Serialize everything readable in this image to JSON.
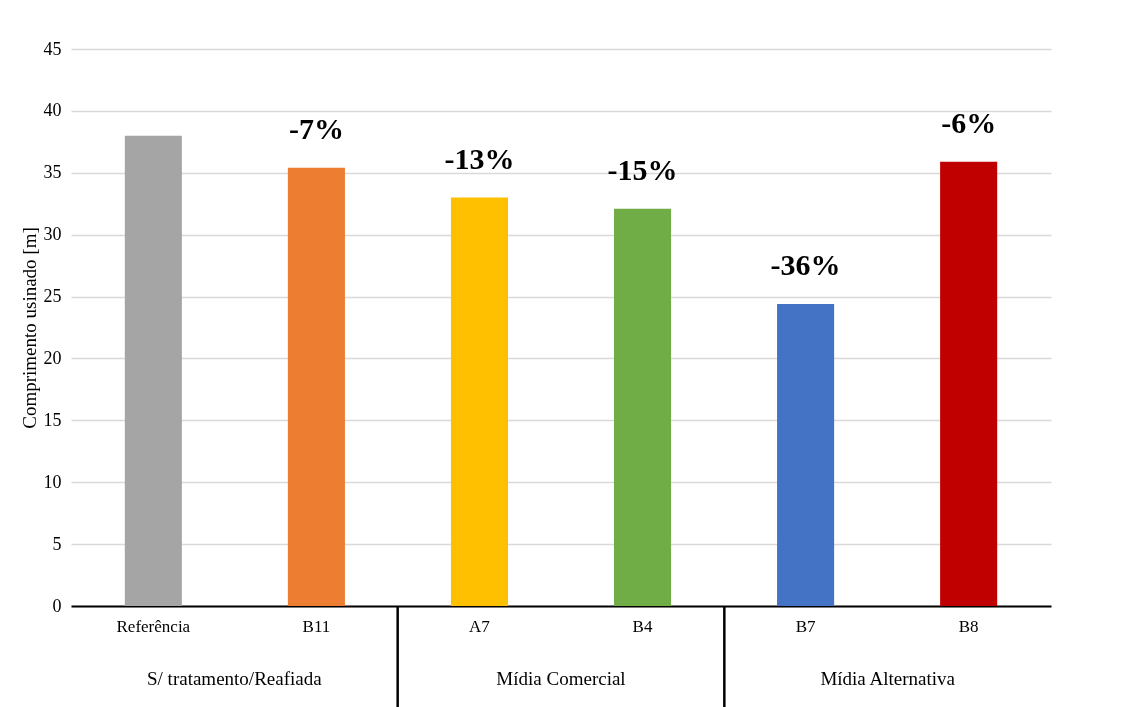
{
  "chart_data": {
    "type": "bar",
    "ylabel": "Comprimento usinado [m]",
    "categories": [
      "Referência",
      "B11",
      "A7",
      "B4",
      "B7",
      "B8"
    ],
    "values": [
      38,
      35.4,
      33.0,
      32.1,
      24.4,
      35.9
    ],
    "colors": [
      "#a5a5a5",
      "#ed7d31",
      "#ffc000",
      "#70ad47",
      "#4472c4",
      "#c00000"
    ],
    "annotations": [
      "S/ tratamento/Reafiada",
      "Mídia Comercial",
      "Mídia Alternativa",
      {
        "text": "-7%",
        "x": "B11",
        "y": 35.4
      },
      {
        "text": "-13%",
        "x": "A7",
        "y": 33.0
      },
      {
        "text": "-15%",
        "x": "B4",
        "y": 32.1
      },
      {
        "text": "-36%",
        "x": "B7",
        "y": 24.4
      },
      {
        "text": "-6%",
        "x": "B8",
        "y": 35.9
      }
    ],
    "ylim": [
      0,
      45
    ],
    "yticks": [
      0,
      5,
      10,
      15,
      20,
      25,
      30,
      35,
      40,
      45
    ],
    "grid": "y",
    "legend": false
  }
}
